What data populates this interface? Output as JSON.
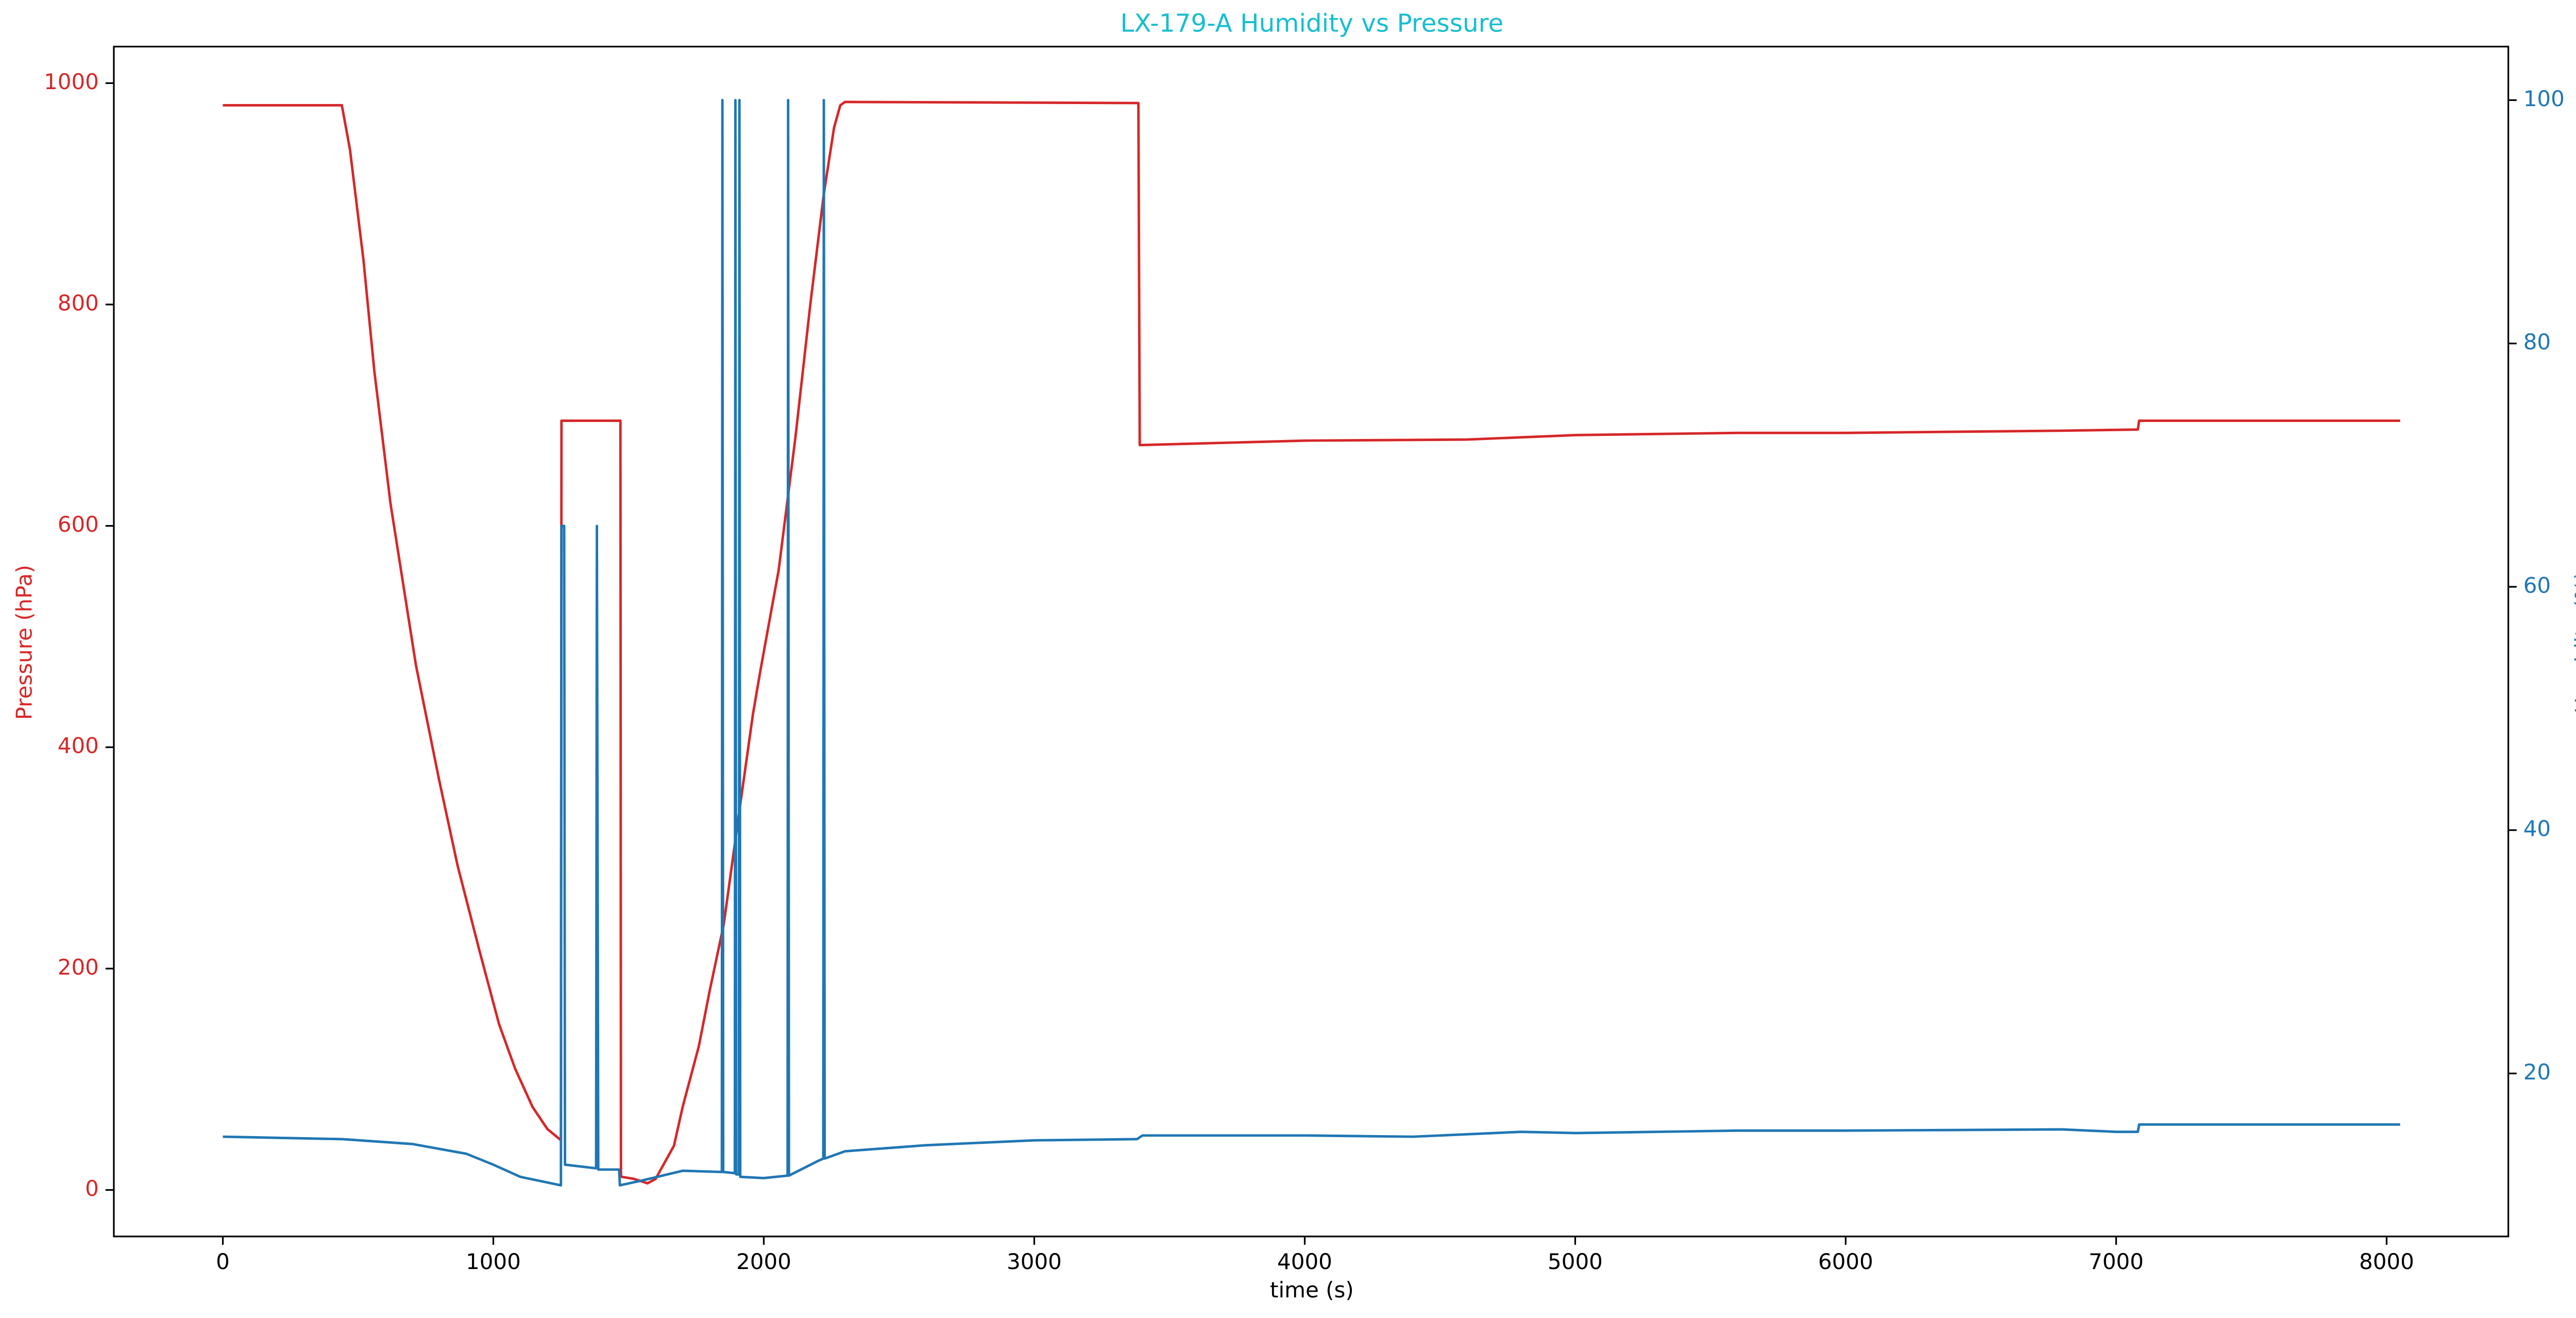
{
  "chart_data": {
    "type": "line",
    "title": "LX-179-A Humidity vs Pressure",
    "title_color": "#17becf",
    "xlabel": "time (s)",
    "ylabel": "Pressure (hPa)",
    "y2label": "Humidity (%)",
    "xlim": [
      -403,
      8450
    ],
    "ylim": [
      -42,
      1033
    ],
    "y2lim": [
      6.6,
      104.4
    ],
    "xticks": [
      0,
      1000,
      2000,
      3000,
      4000,
      5000,
      6000,
      7000,
      8000
    ],
    "yticks": [
      0,
      200,
      400,
      600,
      800,
      1000
    ],
    "y2ticks": [
      20,
      40,
      60,
      80,
      100
    ],
    "ycolor": "#d62728",
    "y2color": "#1f77b4",
    "series": [
      {
        "color": "#d62728",
        "axis": "y",
        "x": [
          0,
          440,
          470,
          520,
          560,
          620,
          714,
          800,
          868,
          950,
          1021,
          1080,
          1145,
          1200,
          1250,
          1252,
          1470,
          1472,
          1520,
          1570,
          1600,
          1668,
          1700,
          1760,
          1800,
          1852,
          1914,
          1960,
          1988,
          2055,
          2117,
          2172,
          2222,
          2260,
          2283,
          2300,
          3385,
          3390,
          4000,
          4600,
          5000,
          5600,
          6000,
          6800,
          7080,
          7085,
          8050
        ],
        "values": [
          980,
          980,
          940,
          840,
          740,
          620,
          474,
          370,
          293,
          215,
          150,
          110,
          75,
          55,
          45,
          695,
          695,
          12,
          10,
          6,
          10,
          40,
          75,
          130,
          180,
          240,
          350,
          430,
          470,
          560,
          680,
          800,
          900,
          960,
          980,
          983,
          982,
          673,
          677,
          678,
          682,
          684,
          684,
          686,
          687,
          695,
          695
        ]
      },
      {
        "color": "#1f77b4",
        "axis": "y2",
        "x": [
          0,
          440,
          700,
          900,
          1000,
          1100,
          1250,
          1252,
          1262,
          1265,
          1380,
          1383,
          1388,
          1465,
          1468,
          1550,
          1700,
          1845,
          1847,
          1850,
          1893,
          1895,
          1898,
          1908,
          1910,
          1913,
          2000,
          2088,
          2090,
          2093,
          2200,
          2220,
          2222,
          2225,
          2300,
          2600,
          3000,
          3380,
          3400,
          4000,
          4400,
          4800,
          5000,
          5600,
          6000,
          6800,
          7000,
          7080,
          7085,
          8050
        ],
        "values": [
          14.8,
          14.6,
          14.2,
          13.4,
          12.5,
          11.5,
          10.8,
          65,
          65,
          12.5,
          12.2,
          65,
          12.1,
          12.1,
          10.8,
          11.2,
          12.0,
          11.9,
          100,
          11.9,
          11.8,
          100,
          11.7,
          11.7,
          100,
          11.5,
          11.4,
          11.6,
          100,
          11.6,
          12.8,
          13.0,
          100,
          13.0,
          13.6,
          14.1,
          14.5,
          14.6,
          14.9,
          14.9,
          14.8,
          15.2,
          15.1,
          15.3,
          15.3,
          15.4,
          15.2,
          15.2,
          15.8,
          15.8
        ]
      }
    ]
  }
}
